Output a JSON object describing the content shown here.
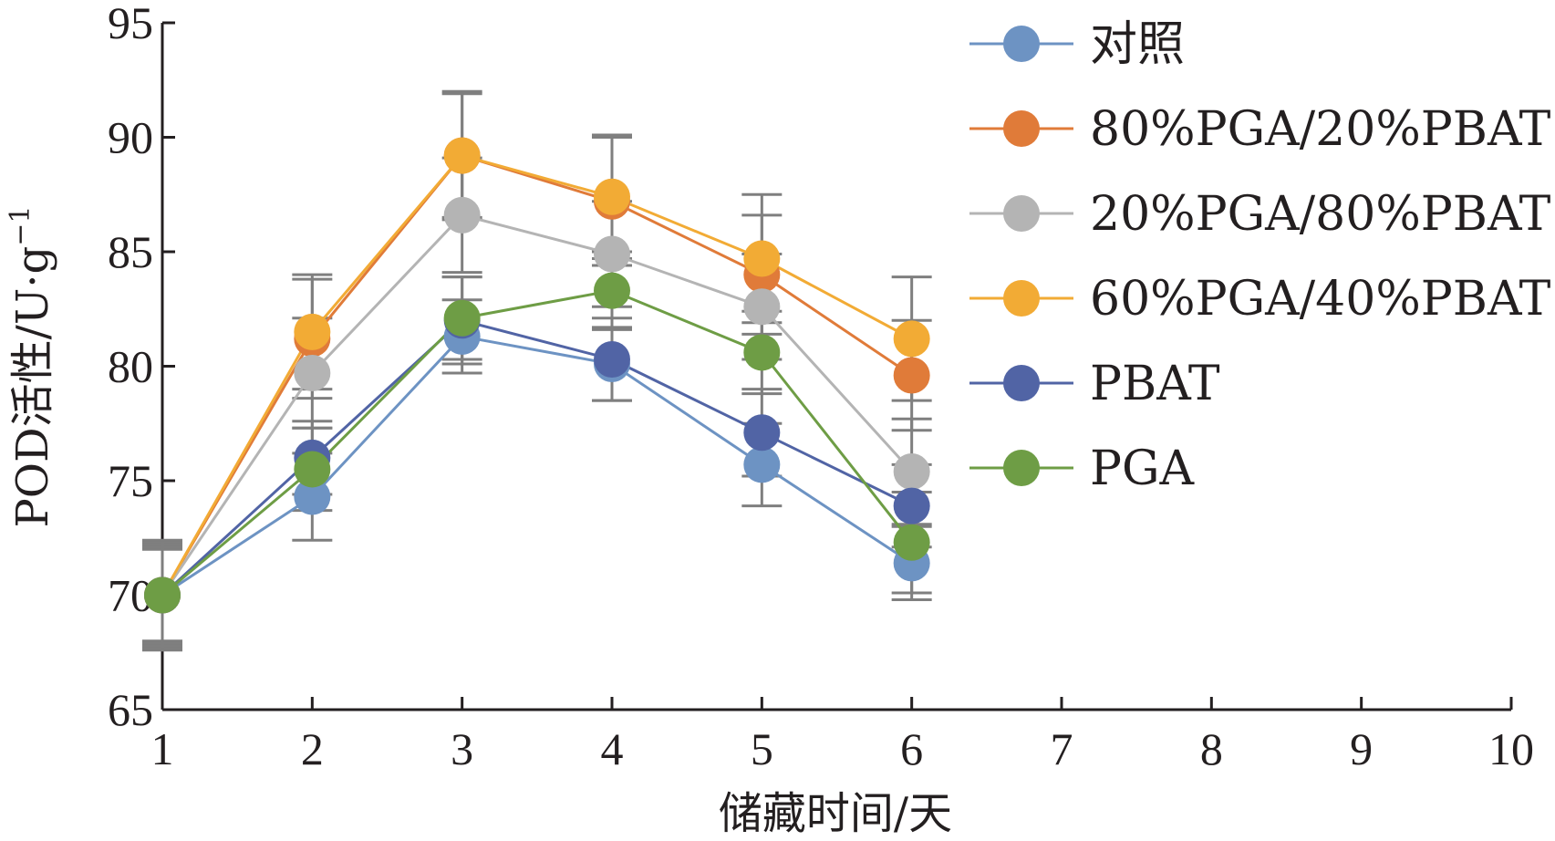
{
  "chart_data": {
    "type": "line",
    "xlabel": "储藏时间/天",
    "ylabel": "POD活性/U·g",
    "ylabel_sup": "−1",
    "x_ticks": [
      1,
      2,
      3,
      4,
      5,
      6,
      7,
      8,
      9,
      10
    ],
    "y_ticks": [
      65,
      70,
      75,
      80,
      85,
      90,
      95
    ],
    "xlim": [
      1,
      10
    ],
    "ylim": [
      65,
      95
    ],
    "grid": false,
    "legend_position": "right",
    "x": [
      1,
      2,
      3,
      4,
      5,
      6
    ],
    "series": [
      {
        "name": "对照",
        "color": "#6d93c3",
        "values": [
          70.0,
          74.3,
          81.3,
          80.1,
          75.7,
          71.4
        ],
        "errors": [
          2.0,
          1.9,
          1.6,
          1.6,
          1.8,
          1.6
        ]
      },
      {
        "name": "80%PGA/20%PBAT",
        "color": "#e07b39",
        "values": [
          70.0,
          81.2,
          89.2,
          87.2,
          84.0,
          79.6
        ],
        "errors": [
          2.1,
          2.6,
          2.7,
          2.8,
          2.6,
          2.4
        ]
      },
      {
        "name": "20%PGA/80%PBAT",
        "color": "#b4b4b4",
        "values": [
          70.0,
          79.7,
          86.6,
          84.9,
          82.6,
          75.4
        ],
        "errors": [
          2.3,
          2.4,
          2.5,
          2.3,
          2.3,
          2.3
        ]
      },
      {
        "name": "60%PGA/40%PBAT",
        "color": "#f2ab35",
        "values": [
          70.0,
          81.5,
          89.2,
          87.4,
          84.7,
          81.2
        ],
        "errors": [
          2.2,
          2.5,
          2.8,
          2.7,
          2.8,
          2.7
        ]
      },
      {
        "name": "PBAT",
        "color": "#5164a5",
        "values": [
          70.0,
          76.0,
          82.0,
          80.3,
          77.1,
          73.9
        ],
        "errors": [
          2.1,
          1.6,
          1.9,
          1.8,
          1.9,
          1.8
        ]
      },
      {
        "name": "PGA",
        "color": "#6e9d45",
        "values": [
          70.0,
          75.5,
          82.1,
          83.3,
          80.6,
          72.3
        ],
        "errors": [
          2.4,
          1.8,
          1.8,
          1.7,
          1.8,
          2.2
        ]
      }
    ]
  }
}
